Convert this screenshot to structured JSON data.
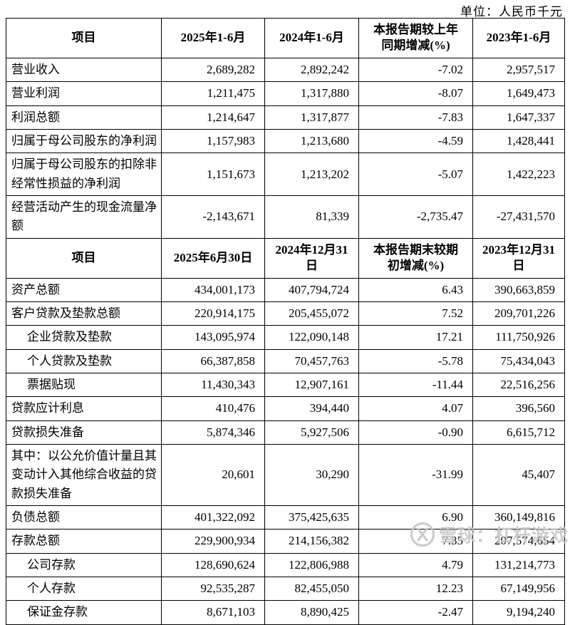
{
  "unit_label": "单位：人民币千元",
  "watermark": {
    "text": "雪球：杠杆游戏",
    "logo": "xueqiu-logo",
    "color": "#c7c7c7"
  },
  "table": {
    "sections": [
      {
        "headers": [
          "项目",
          "2025年1-6月",
          "2024年1-6月",
          "本报告期较上年\n同期增减(%)",
          "2023年1-6月"
        ],
        "rows": [
          {
            "item": "营业收入",
            "indent": false,
            "values": [
              "2,689,282",
              "2,892,242",
              "-7.02",
              "2,957,517"
            ]
          },
          {
            "item": "营业利润",
            "indent": false,
            "values": [
              "1,211,475",
              "1,317,880",
              "-8.07",
              "1,649,473"
            ]
          },
          {
            "item": "利润总额",
            "indent": false,
            "values": [
              "1,214,647",
              "1,317,877",
              "-7.83",
              "1,647,337"
            ]
          },
          {
            "item": "归属于母公司股东的净利润",
            "indent": false,
            "values": [
              "1,157,983",
              "1,213,680",
              "-4.59",
              "1,428,441"
            ]
          },
          {
            "item": "归属于母公司股东的扣除非经常性损益的净利润",
            "indent": false,
            "values": [
              "1,151,673",
              "1,213,202",
              "-5.07",
              "1,422,223"
            ]
          },
          {
            "item": "经营活动产生的现金流量净额",
            "indent": false,
            "values": [
              "-2,143,671",
              "81,339",
              "-2,735.47",
              "-27,431,570"
            ]
          }
        ]
      },
      {
        "headers": [
          "项目",
          "2025年6月30日",
          "2024年12月31\n日",
          "本报告期末较期\n初增减(%)",
          "2023年12月31\n日"
        ],
        "rows": [
          {
            "item": "资产总额",
            "indent": false,
            "values": [
              "434,001,173",
              "407,794,724",
              "6.43",
              "390,663,859"
            ]
          },
          {
            "item": "客户贷款及垫款总额",
            "indent": false,
            "values": [
              "220,914,175",
              "205,455,072",
              "7.52",
              "209,701,226"
            ]
          },
          {
            "item": "企业贷款及垫款",
            "indent": true,
            "values": [
              "143,095,974",
              "122,090,148",
              "17.21",
              "111,750,926"
            ]
          },
          {
            "item": "个人贷款及垫款",
            "indent": true,
            "values": [
              "66,387,858",
              "70,457,763",
              "-5.78",
              "75,434,043"
            ]
          },
          {
            "item": "票据贴现",
            "indent": true,
            "values": [
              "11,430,343",
              "12,907,161",
              "-11.44",
              "22,516,256"
            ]
          },
          {
            "item": "贷款应计利息",
            "indent": false,
            "values": [
              "410,476",
              "394,440",
              "4.07",
              "396,560"
            ]
          },
          {
            "item": "贷款损失准备",
            "indent": false,
            "values": [
              "5,874,346",
              "5,927,506",
              "-0.90",
              "6,615,712"
            ]
          },
          {
            "item": "其中：以公允价值计量且其变动计入其他综合收益的贷款损失准备",
            "indent": false,
            "values": [
              "20,601",
              "30,290",
              "-31.99",
              "45,407"
            ]
          },
          {
            "item": "负债总额",
            "indent": false,
            "values": [
              "401,322,092",
              "375,425,635",
              "6.90",
              "360,149,816"
            ]
          },
          {
            "item": "存款总额",
            "indent": false,
            "values": [
              "229,900,934",
              "214,156,382",
              "7.35",
              "207,574,654"
            ]
          },
          {
            "item": "公司存款",
            "indent": true,
            "values": [
              "128,690,624",
              "122,806,988",
              "4.79",
              "131,214,773"
            ]
          },
          {
            "item": "个人存款",
            "indent": true,
            "values": [
              "92,535,287",
              "82,455,050",
              "12.23",
              "67,149,956"
            ]
          },
          {
            "item": "保证金存款",
            "indent": true,
            "values": [
              "8,671,103",
              "8,890,425",
              "-2.47",
              "9,194,240"
            ]
          }
        ]
      }
    ]
  }
}
